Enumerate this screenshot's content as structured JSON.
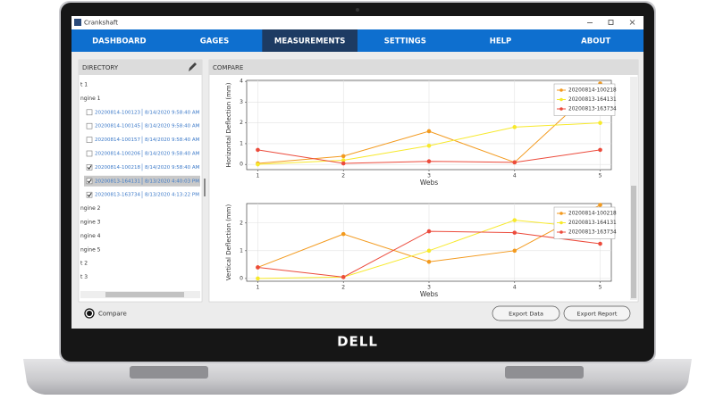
{
  "window": {
    "title": "Crankshaft"
  },
  "nav": {
    "tabs": [
      "DASHBOARD",
      "GAGES",
      "MEASUREMENTS",
      "SETTINGS",
      "HELP",
      "ABOUT"
    ],
    "active": 2
  },
  "directory": {
    "title": "DIRECTORY",
    "items": [
      {
        "label": "t 1"
      },
      {
        "label": "ngine 1"
      },
      {
        "file": "20200814-100123",
        "date": "8/14/2020 9:58:40 AM",
        "checked": false,
        "selected": false
      },
      {
        "file": "20200814-100145",
        "date": "8/14/2020 9:58:40 AM",
        "checked": false,
        "selected": false
      },
      {
        "file": "20200814-100157",
        "date": "8/14/2020 9:58:40 AM",
        "checked": false,
        "selected": false
      },
      {
        "file": "20200814-100206",
        "date": "8/14/2020 9:58:40 AM",
        "checked": false,
        "selected": false
      },
      {
        "file": "20200814-100218",
        "date": "8/14/2020 9:58:40 AM",
        "checked": true,
        "selected": false
      },
      {
        "file": "20200813-164131",
        "date": "8/13/2020 4:40:03 PM",
        "checked": true,
        "selected": true
      },
      {
        "file": "20200813-163734",
        "date": "8/13/2020 4:13:22 PM",
        "checked": true,
        "selected": false
      },
      {
        "label": "ngine 2"
      },
      {
        "label": "ngine 3"
      },
      {
        "label": "ngine 4"
      },
      {
        "label": "ngine 5"
      },
      {
        "label": "t 2"
      },
      {
        "label": "t 3"
      }
    ]
  },
  "compare_panel": {
    "title": "COMPARE"
  },
  "footer": {
    "toggle": "Compare",
    "buttons": [
      "Export Data",
      "Export Report"
    ]
  },
  "laptop": {
    "brand": "DELL"
  },
  "chart_data": [
    {
      "type": "line",
      "x_label": "Webs",
      "y_label": "Horizontal Deflection (mm)",
      "x": [
        1,
        2,
        3,
        4,
        5
      ],
      "xlim": [
        0.87,
        5.13
      ],
      "xticks": [
        1,
        2,
        3,
        4,
        5
      ],
      "ylim": [
        -0.25,
        4.05
      ],
      "yticks": [
        0,
        1,
        2,
        3,
        4
      ],
      "grid": true,
      "legend": "upper right",
      "series": [
        {
          "name": "20200814-100218",
          "color": "#f39a1e",
          "values": [
            0.05,
            0.4,
            1.6,
            0.1,
            3.9
          ]
        },
        {
          "name": "20200813-164131",
          "color": "#f7e92c",
          "values": [
            0,
            0.2,
            0.9,
            1.8,
            2.0
          ]
        },
        {
          "name": "20200813-163734",
          "color": "#ec4b3c",
          "values": [
            0.7,
            0.05,
            0.15,
            0.1,
            0.7
          ]
        }
      ]
    },
    {
      "type": "line",
      "x_label": "Webs",
      "y_label": "Vertical Deflection (mm)",
      "x": [
        1,
        2,
        3,
        4,
        5
      ],
      "xlim": [
        0.87,
        5.13
      ],
      "xticks": [
        1,
        2,
        3,
        4,
        5
      ],
      "ylim": [
        -0.1,
        2.7
      ],
      "yticks": [
        0,
        1,
        2
      ],
      "grid": true,
      "legend": "upper right",
      "series": [
        {
          "name": "20200814-100218",
          "color": "#f39a1e",
          "values": [
            0.4,
            1.6,
            0.6,
            1.0,
            2.65
          ]
        },
        {
          "name": "20200813-164131",
          "color": "#f7e92c",
          "values": [
            0,
            0.05,
            1.0,
            2.1,
            1.8
          ]
        },
        {
          "name": "20200813-163734",
          "color": "#ec4b3c",
          "values": [
            0.4,
            0.05,
            1.7,
            1.65,
            1.25
          ]
        }
      ]
    }
  ]
}
